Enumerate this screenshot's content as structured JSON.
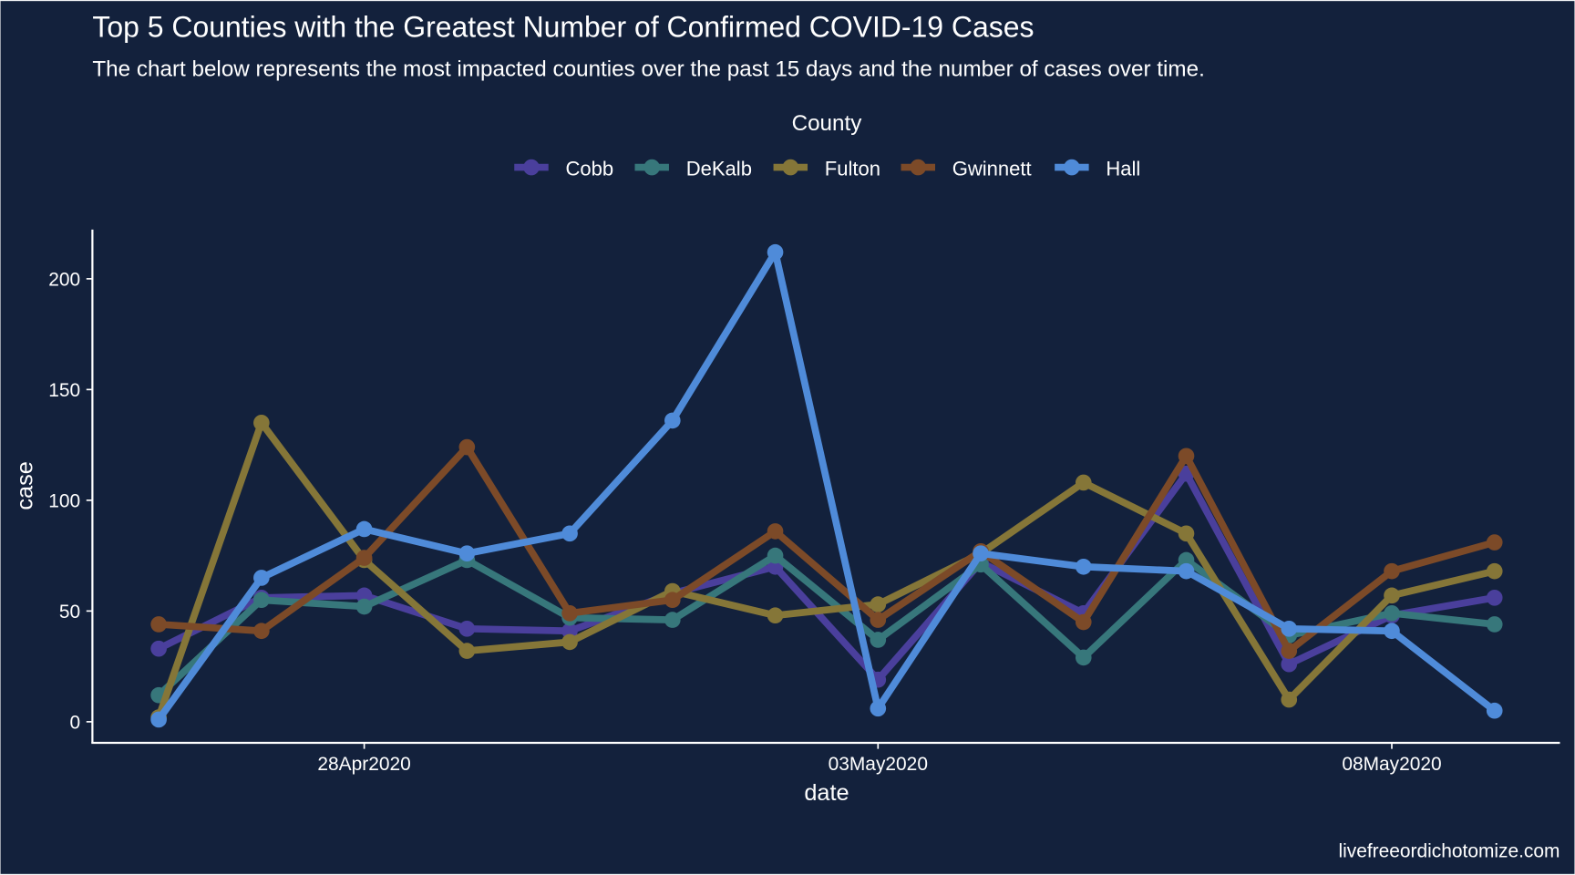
{
  "chart_data": {
    "type": "line",
    "title": "Top 5 Counties with the Greatest Number of Confirmed COVID-19 Cases",
    "subtitle": "The chart below represents the most impacted counties over the past 15 days and the number of cases over time.",
    "xlabel": "date",
    "ylabel": "case",
    "legend_title": "County",
    "legend_position": "top",
    "caption": "livefreeordichotomize.com",
    "ylim": [
      -10,
      222
    ],
    "yticks": [
      0,
      50,
      100,
      150,
      200
    ],
    "xticks": [
      {
        "day": 2,
        "label": "28Apr2020"
      },
      {
        "day": 7,
        "label": "03May2020"
      },
      {
        "day": 12,
        "label": "08May2020"
      }
    ],
    "x": [
      "26Apr2020",
      "27Apr2020",
      "28Apr2020",
      "29Apr2020",
      "30Apr2020",
      "01May2020",
      "02May2020",
      "03May2020",
      "04May2020",
      "05May2020",
      "06May2020",
      "07May2020",
      "08May2020",
      "09May2020"
    ],
    "series": [
      {
        "name": "Cobb",
        "color": "#4a3f9c",
        "values": [
          33,
          56,
          57,
          42,
          41,
          58,
          70,
          19,
          72,
          49,
          112,
          26,
          48,
          56
        ]
      },
      {
        "name": "DeKalb",
        "color": "#37777b",
        "values": [
          12,
          55,
          52,
          73,
          47,
          46,
          75,
          37,
          71,
          29,
          73,
          39,
          49,
          44
        ]
      },
      {
        "name": "Fulton",
        "color": "#857638",
        "values": [
          2,
          135,
          73,
          32,
          36,
          59,
          48,
          53,
          76,
          108,
          85,
          10,
          57,
          68
        ]
      },
      {
        "name": "Gwinnett",
        "color": "#7c4a28",
        "values": [
          44,
          41,
          74,
          124,
          49,
          55,
          86,
          46,
          77,
          45,
          120,
          32,
          68,
          81
        ]
      },
      {
        "name": "Hall",
        "color": "#4f8bd9",
        "values": [
          1,
          65,
          87,
          76,
          85,
          136,
          212,
          6,
          76,
          70,
          68,
          42,
          41,
          5
        ]
      }
    ]
  }
}
